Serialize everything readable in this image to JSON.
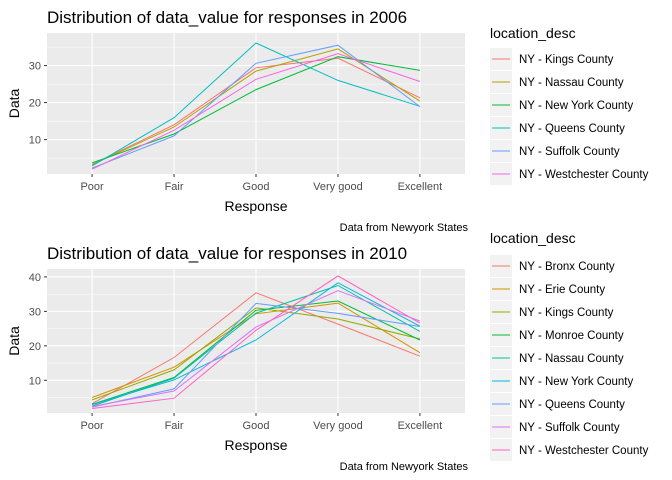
{
  "chart_data": [
    {
      "type": "line",
      "title": "Distribution of data_value for responses in 2006",
      "xlabel": "Response",
      "ylabel": "Data",
      "caption": "Data from Newyork States",
      "legend_title": "location_desc",
      "legend_position": "right",
      "grid": true,
      "categories": [
        "Poor",
        "Fair",
        "Good",
        "Very good",
        "Excellent"
      ],
      "ylim": [
        0.7,
        38.8
      ],
      "yticks": [
        10,
        20,
        30
      ],
      "series": [
        {
          "name": "NY - Kings County",
          "color": "#F8766D",
          "values": [
            3.3,
            14.0,
            29.4,
            32.0,
            21.3
          ]
        },
        {
          "name": "NY - Nassau County",
          "color": "#B79F00",
          "values": [
            3.2,
            13.4,
            28.5,
            34.5,
            20.4
          ]
        },
        {
          "name": "NY - New York County",
          "color": "#00BA38",
          "values": [
            3.7,
            11.5,
            23.5,
            32.4,
            28.7
          ]
        },
        {
          "name": "NY - Queens County",
          "color": "#00BFC4",
          "values": [
            2.9,
            15.9,
            36.1,
            26.0,
            19.0
          ]
        },
        {
          "name": "NY - Suffolk County",
          "color": "#619CFF",
          "values": [
            2.3,
            11.0,
            30.6,
            35.5,
            18.9
          ]
        },
        {
          "name": "NY - Westchester County",
          "color": "#F564E3",
          "values": [
            2.0,
            12.5,
            26.3,
            33.2,
            25.7
          ]
        }
      ]
    },
    {
      "type": "line",
      "title": "Distribution of data_value for responses in 2010",
      "xlabel": "Response",
      "ylabel": "Data",
      "caption": "Data from Newyork States",
      "legend_title": "location_desc",
      "legend_position": "right",
      "grid": true,
      "categories": [
        "Poor",
        "Fair",
        "Good",
        "Very good",
        "Excellent"
      ],
      "ylim": [
        0.5,
        42.3
      ],
      "yticks": [
        10,
        20,
        30,
        40
      ],
      "series": [
        {
          "name": "NY - Bronx County",
          "color": "#F8766D",
          "values": [
            3.2,
            16.6,
            35.4,
            26.3,
            17.0
          ]
        },
        {
          "name": "NY - Erie County",
          "color": "#D39200",
          "values": [
            5.0,
            13.8,
            29.3,
            32.4,
            18.0
          ]
        },
        {
          "name": "NY - Kings County",
          "color": "#93AA00",
          "values": [
            4.3,
            13.0,
            31.0,
            27.8,
            22.0
          ]
        },
        {
          "name": "NY - Monroe County",
          "color": "#00BA38",
          "values": [
            3.0,
            10.8,
            30.3,
            33.0,
            21.7
          ]
        },
        {
          "name": "NY - Nassau County",
          "color": "#00C19F",
          "values": [
            2.5,
            10.6,
            29.5,
            37.5,
            24.2
          ]
        },
        {
          "name": "NY - New York County",
          "color": "#00B9E3",
          "values": [
            2.9,
            10.1,
            21.7,
            38.3,
            25.7
          ]
        },
        {
          "name": "NY - Queens County",
          "color": "#619CFF",
          "values": [
            2.2,
            7.5,
            32.3,
            29.4,
            25.6
          ]
        },
        {
          "name": "NY - Suffolk County",
          "color": "#DB72FB",
          "values": [
            2.4,
            6.9,
            25.5,
            36.0,
            27.2
          ]
        },
        {
          "name": "NY - Westchester County",
          "color": "#FF61C3",
          "values": [
            1.8,
            4.8,
            24.5,
            40.3,
            26.6
          ]
        }
      ]
    }
  ]
}
